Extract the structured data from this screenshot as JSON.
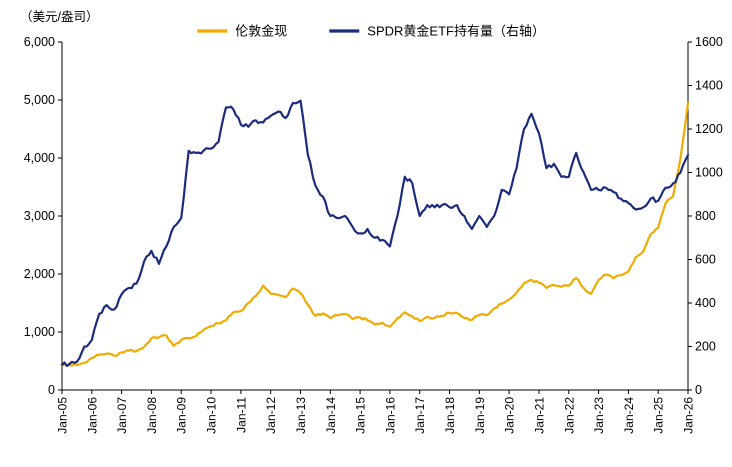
{
  "chart_data": {
    "type": "line",
    "title": "",
    "grid": false,
    "legend_position": "top",
    "y_left": {
      "title": "（美元/盎司）",
      "min": 0,
      "max": 6000,
      "step": 1000,
      "tick_labels": [
        "0",
        "1,000",
        "2,000",
        "3,000",
        "4,000",
        "5,000",
        "6,000"
      ]
    },
    "y_right": {
      "min": 0,
      "max": 1600,
      "step": 200,
      "tick_labels": [
        "0",
        "200",
        "400",
        "600",
        "800",
        "1000",
        "1200",
        "1400",
        "1600"
      ]
    },
    "x": {
      "start_year": 2005,
      "end_year": 2026,
      "points_per_year": 4,
      "tick_labels": [
        "Jan-05",
        "Jan-06",
        "Jan-07",
        "Jan-08",
        "Jan-09",
        "Jan-10",
        "Jan-11",
        "Jan-12",
        "Jan-13",
        "Jan-14",
        "Jan-15",
        "Jan-16",
        "Jan-17",
        "Jan-18",
        "Jan-19",
        "Jan-20",
        "Jan-21",
        "Jan-22",
        "Jan-23",
        "Jan-24",
        "Jan-25",
        "Jan-26"
      ]
    },
    "series": [
      {
        "name": "伦敦金现",
        "axis": "left",
        "color": "#F0AB00",
        "noise": 20,
        "values": [
          425,
          430,
          430,
          470,
          550,
          610,
          630,
          590,
          650,
          680,
          670,
          740,
          890,
          910,
          940,
          760,
          860,
          890,
          930,
          1040,
          1100,
          1150,
          1200,
          1340,
          1360,
          1500,
          1620,
          1800,
          1660,
          1640,
          1600,
          1750,
          1670,
          1470,
          1280,
          1320,
          1240,
          1290,
          1310,
          1220,
          1250,
          1200,
          1130,
          1160,
          1090,
          1240,
          1340,
          1270,
          1190,
          1260,
          1240,
          1280,
          1330,
          1330,
          1240,
          1210,
          1290,
          1290,
          1410,
          1490,
          1560,
          1680,
          1840,
          1900,
          1850,
          1760,
          1810,
          1780,
          1800,
          1930,
          1760,
          1660,
          1900,
          1990,
          1930,
          1980,
          2040,
          2290,
          2390,
          2690,
          2800,
          3220,
          3340,
          4000,
          4950
        ]
      },
      {
        "name": "SPDR黄金ETF持有量（右轴）",
        "axis": "right",
        "color": "#1B2C7E",
        "noise": 10,
        "values": [
          115,
          120,
          130,
          200,
          230,
          350,
          390,
          370,
          440,
          470,
          490,
          590,
          640,
          580,
          660,
          750,
          790,
          1100,
          1090,
          1100,
          1110,
          1140,
          1300,
          1290,
          1220,
          1210,
          1240,
          1230,
          1260,
          1280,
          1250,
          1320,
          1330,
          1080,
          940,
          890,
          800,
          790,
          800,
          750,
          720,
          740,
          700,
          690,
          660,
          800,
          980,
          950,
          800,
          850,
          840,
          850,
          840,
          850,
          800,
          740,
          800,
          750,
          800,
          920,
          900,
          1020,
          1200,
          1270,
          1180,
          1020,
          1040,
          980,
          980,
          1090,
          1000,
          920,
          920,
          930,
          910,
          880,
          860,
          830,
          840,
          880,
          870,
          930,
          950,
          1000,
          1080
        ]
      }
    ]
  }
}
